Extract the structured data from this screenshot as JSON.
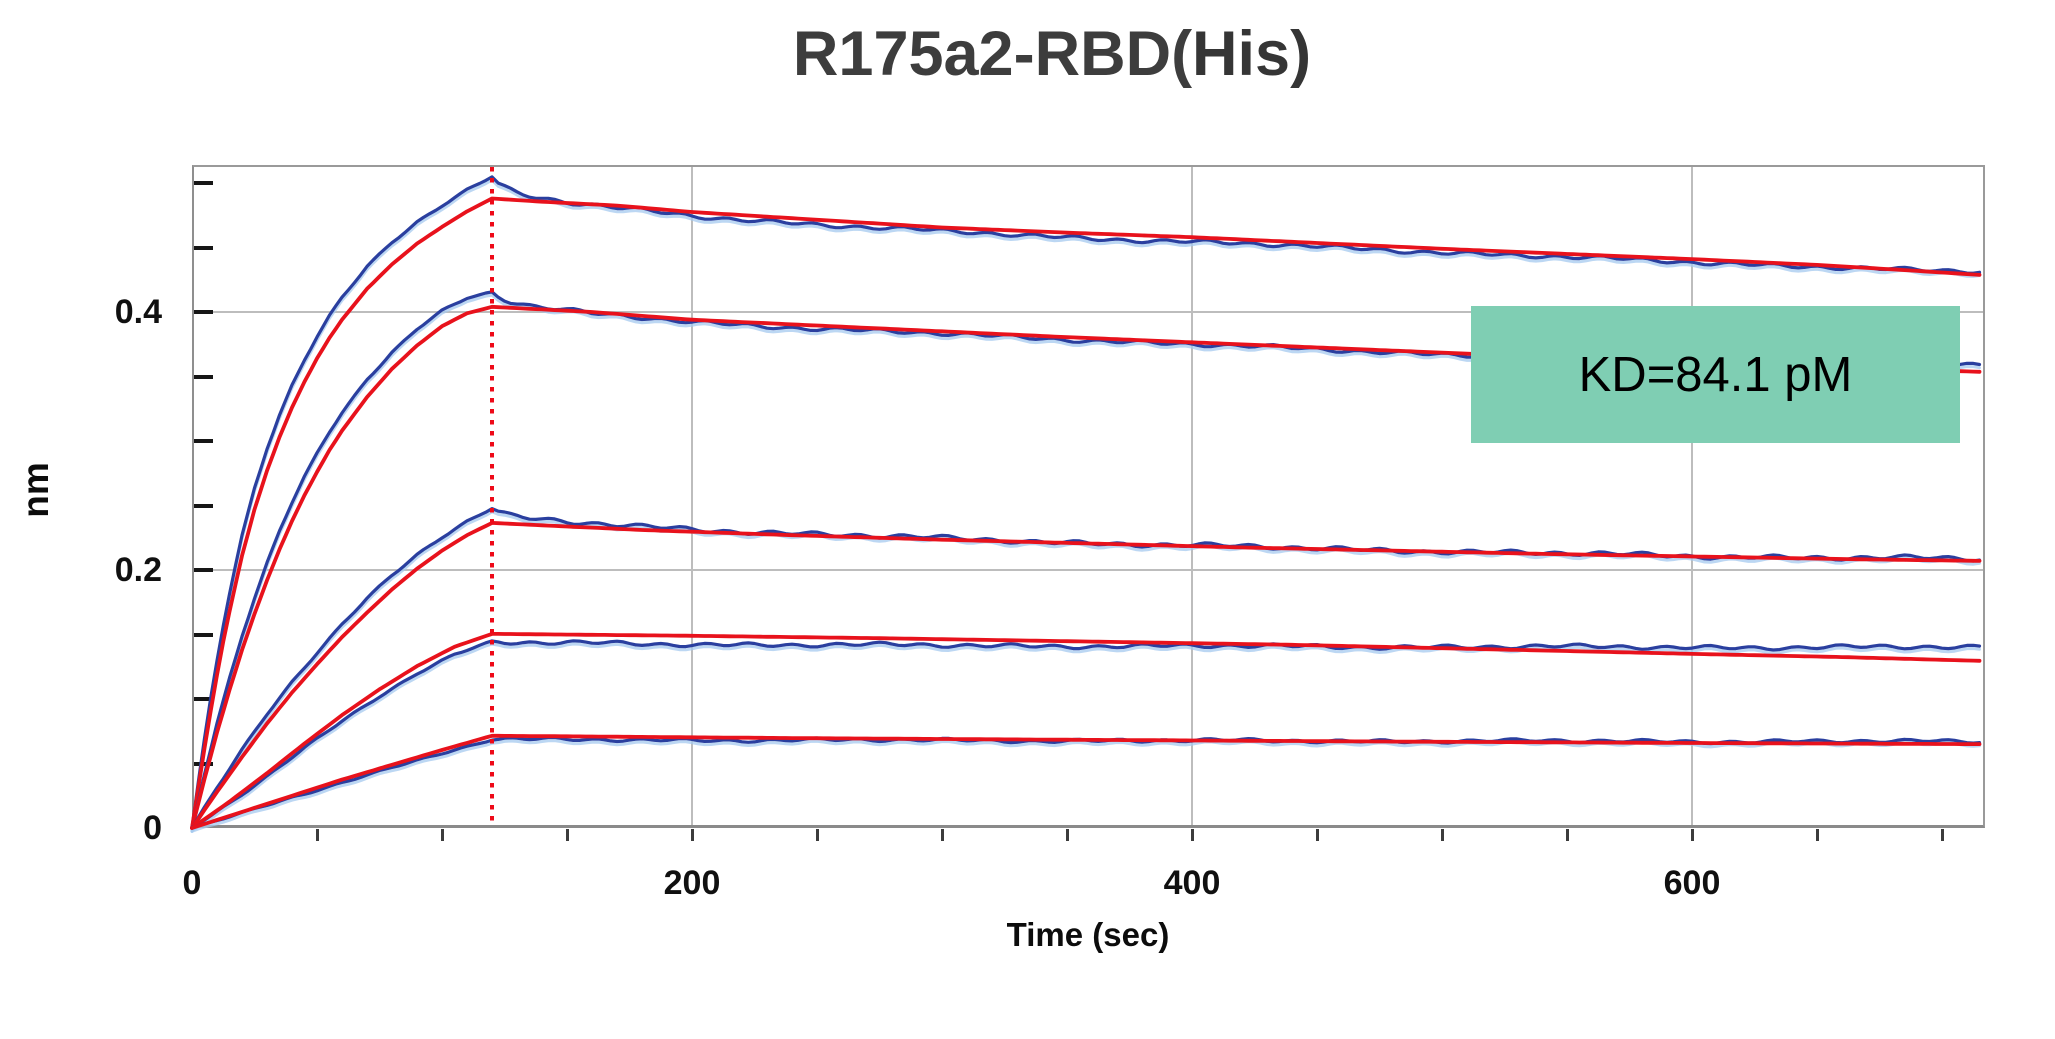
{
  "page": {
    "background": "#ffffff"
  },
  "title": {
    "part1": "R175a2-RBD(",
    "part2": "His",
    "part3": ")"
  },
  "annotation": {
    "text": "KD=84.1 pM",
    "bg": "#7fceb3",
    "fg": "#000000"
  },
  "axes": {
    "x": {
      "title": "Time (sec)",
      "min": 0,
      "max": 720,
      "minor_tick_step": 50,
      "gridline_ts": [
        200,
        400,
        600
      ],
      "tick_labels": [
        {
          "t": 0,
          "text": "0"
        },
        {
          "t": 200,
          "text": "200"
        },
        {
          "t": 400,
          "text": "400"
        },
        {
          "t": 600,
          "text": "600"
        }
      ]
    },
    "y": {
      "title": "nm",
      "min": 0,
      "max": 0.514,
      "minor_tick_step": 0.05,
      "gridline_vs": [
        0.2,
        0.4
      ],
      "tick_labels": [
        {
          "v": 0,
          "text": "0"
        },
        {
          "v": 0.2,
          "text": "0.2"
        },
        {
          "v": 0.4,
          "text": "0.4"
        }
      ]
    }
  },
  "chart_data": {
    "type": "line",
    "title": "R175a2-RBD(His)",
    "xlabel": "Time (sec)",
    "ylabel": "nm",
    "xlim": [
      0,
      720
    ],
    "ylim": [
      0,
      0.514
    ],
    "grid": true,
    "legend": "none",
    "association_end_sec": 120,
    "kd_annotation": "KD=84.1 pM",
    "marker_line": {
      "t": 120,
      "color": "#ee0a18",
      "style": "dotted"
    },
    "colors": {
      "raw": "#2a3f9f",
      "raw_halo": "#a5c9ef",
      "fit": "#e8121c",
      "grid": "#bdbdbd",
      "frame": "#9a9a9a"
    },
    "series": [
      {
        "name": "curve-1-raw",
        "role": "raw",
        "color": "#2a3f9f",
        "noise": 0.0018,
        "points": [
          [
            0,
            0
          ],
          [
            4,
            0.056
          ],
          [
            8,
            0.107
          ],
          [
            12,
            0.152
          ],
          [
            16,
            0.191
          ],
          [
            20,
            0.226
          ],
          [
            25,
            0.263
          ],
          [
            30,
            0.294
          ],
          [
            35,
            0.32
          ],
          [
            40,
            0.343
          ],
          [
            45,
            0.363
          ],
          [
            50,
            0.381
          ],
          [
            55,
            0.397
          ],
          [
            60,
            0.411
          ],
          [
            70,
            0.435
          ],
          [
            80,
            0.454
          ],
          [
            90,
            0.47
          ],
          [
            100,
            0.483
          ],
          [
            110,
            0.495
          ],
          [
            120,
            0.505
          ],
          [
            122,
            0.5
          ],
          [
            126,
            0.4955
          ],
          [
            131,
            0.4915
          ],
          [
            138,
            0.4885
          ],
          [
            150,
            0.485
          ],
          [
            170,
            0.4805
          ],
          [
            200,
            0.4745
          ],
          [
            250,
            0.468
          ],
          [
            300,
            0.4625
          ],
          [
            350,
            0.458
          ],
          [
            400,
            0.4545
          ],
          [
            450,
            0.4505
          ],
          [
            500,
            0.4465
          ],
          [
            550,
            0.4425
          ],
          [
            600,
            0.4385
          ],
          [
            650,
            0.4355
          ],
          [
            685,
            0.4325
          ],
          [
            717,
            0.431
          ]
        ]
      },
      {
        "name": "curve-1-fit",
        "role": "fit",
        "color": "#e8121c",
        "noise": 0,
        "points": [
          [
            0,
            0
          ],
          [
            4,
            0.05
          ],
          [
            8,
            0.097
          ],
          [
            12,
            0.14
          ],
          [
            16,
            0.177
          ],
          [
            20,
            0.211
          ],
          [
            25,
            0.247
          ],
          [
            30,
            0.277
          ],
          [
            35,
            0.303
          ],
          [
            40,
            0.326
          ],
          [
            45,
            0.346
          ],
          [
            50,
            0.364
          ],
          [
            55,
            0.38
          ],
          [
            60,
            0.394
          ],
          [
            70,
            0.418
          ],
          [
            80,
            0.437
          ],
          [
            90,
            0.453
          ],
          [
            100,
            0.466
          ],
          [
            110,
            0.478
          ],
          [
            120,
            0.488
          ],
          [
            140,
            0.4855
          ],
          [
            170,
            0.4825
          ],
          [
            200,
            0.4775
          ],
          [
            250,
            0.4715
          ],
          [
            300,
            0.4655
          ],
          [
            350,
            0.4615
          ],
          [
            400,
            0.458
          ],
          [
            450,
            0.4535
          ],
          [
            500,
            0.449
          ],
          [
            550,
            0.445
          ],
          [
            600,
            0.441
          ],
          [
            650,
            0.4365
          ],
          [
            685,
            0.4325
          ],
          [
            717,
            0.4285
          ]
        ]
      },
      {
        "name": "curve-2-raw",
        "role": "raw",
        "color": "#2a3f9f",
        "noise": 0.0018,
        "points": [
          [
            0,
            0
          ],
          [
            5,
            0.042
          ],
          [
            10,
            0.081
          ],
          [
            15,
            0.116
          ],
          [
            20,
            0.149
          ],
          [
            25,
            0.178
          ],
          [
            30,
            0.205
          ],
          [
            35,
            0.23
          ],
          [
            40,
            0.252
          ],
          [
            45,
            0.272
          ],
          [
            50,
            0.29
          ],
          [
            55,
            0.307
          ],
          [
            60,
            0.322
          ],
          [
            70,
            0.348
          ],
          [
            80,
            0.369
          ],
          [
            90,
            0.387
          ],
          [
            100,
            0.401
          ],
          [
            110,
            0.411
          ],
          [
            120,
            0.4155
          ],
          [
            123,
            0.4115
          ],
          [
            128,
            0.408
          ],
          [
            136,
            0.4045
          ],
          [
            146,
            0.402
          ],
          [
            160,
            0.3985
          ],
          [
            200,
            0.3925
          ],
          [
            250,
            0.3872
          ],
          [
            300,
            0.383
          ],
          [
            350,
            0.379
          ],
          [
            400,
            0.375
          ],
          [
            450,
            0.371
          ],
          [
            500,
            0.3675
          ],
          [
            550,
            0.3645
          ],
          [
            600,
            0.3618
          ],
          [
            660,
            0.3595
          ],
          [
            690,
            0.3585
          ],
          [
            717,
            0.358
          ]
        ]
      },
      {
        "name": "curve-2-fit",
        "role": "fit",
        "color": "#e8121c",
        "noise": 0,
        "points": [
          [
            0,
            0
          ],
          [
            5,
            0.038
          ],
          [
            10,
            0.074
          ],
          [
            15,
            0.107
          ],
          [
            20,
            0.138
          ],
          [
            25,
            0.166
          ],
          [
            30,
            0.192
          ],
          [
            35,
            0.216
          ],
          [
            40,
            0.238
          ],
          [
            45,
            0.258
          ],
          [
            50,
            0.276
          ],
          [
            55,
            0.293
          ],
          [
            60,
            0.308
          ],
          [
            70,
            0.334
          ],
          [
            80,
            0.356
          ],
          [
            90,
            0.374
          ],
          [
            100,
            0.389
          ],
          [
            110,
            0.399
          ],
          [
            120,
            0.404
          ],
          [
            160,
            0.4
          ],
          [
            200,
            0.394
          ],
          [
            250,
            0.3895
          ],
          [
            300,
            0.385
          ],
          [
            350,
            0.3805
          ],
          [
            400,
            0.3765
          ],
          [
            450,
            0.3725
          ],
          [
            500,
            0.3685
          ],
          [
            550,
            0.3645
          ],
          [
            600,
            0.361
          ],
          [
            660,
            0.357
          ],
          [
            717,
            0.3535
          ]
        ]
      },
      {
        "name": "curve-3-raw",
        "role": "raw",
        "color": "#2a3f9f",
        "noise": 0.002,
        "points": [
          [
            0,
            0
          ],
          [
            10,
            0.031
          ],
          [
            20,
            0.06
          ],
          [
            30,
            0.088
          ],
          [
            40,
            0.113
          ],
          [
            50,
            0.136
          ],
          [
            60,
            0.158
          ],
          [
            70,
            0.178
          ],
          [
            80,
            0.196
          ],
          [
            90,
            0.212
          ],
          [
            100,
            0.226
          ],
          [
            110,
            0.238
          ],
          [
            120,
            0.248
          ],
          [
            123,
            0.2445
          ],
          [
            128,
            0.2415
          ],
          [
            135,
            0.2395
          ],
          [
            150,
            0.237
          ],
          [
            180,
            0.2335
          ],
          [
            240,
            0.2285
          ],
          [
            300,
            0.2245
          ],
          [
            360,
            0.221
          ],
          [
            420,
            0.218
          ],
          [
            480,
            0.2155
          ],
          [
            540,
            0.213
          ],
          [
            600,
            0.211
          ],
          [
            660,
            0.2095
          ],
          [
            717,
            0.2085
          ]
        ]
      },
      {
        "name": "curve-3-fit",
        "role": "fit",
        "color": "#e8121c",
        "noise": 0,
        "points": [
          [
            0,
            0
          ],
          [
            10,
            0.028
          ],
          [
            20,
            0.055
          ],
          [
            30,
            0.081
          ],
          [
            40,
            0.105
          ],
          [
            50,
            0.127
          ],
          [
            60,
            0.148
          ],
          [
            70,
            0.167
          ],
          [
            80,
            0.185
          ],
          [
            90,
            0.201
          ],
          [
            100,
            0.215
          ],
          [
            110,
            0.227
          ],
          [
            120,
            0.2365
          ],
          [
            180,
            0.231
          ],
          [
            240,
            0.227
          ],
          [
            300,
            0.2235
          ],
          [
            360,
            0.2205
          ],
          [
            420,
            0.2175
          ],
          [
            480,
            0.215
          ],
          [
            540,
            0.2125
          ],
          [
            600,
            0.2105
          ],
          [
            660,
            0.2085
          ],
          [
            717,
            0.207
          ]
        ]
      },
      {
        "name": "curve-4-raw",
        "role": "raw",
        "color": "#2a3f9f",
        "noise": 0.0018,
        "points": [
          [
            0,
            0
          ],
          [
            15,
            0.019
          ],
          [
            30,
            0.04
          ],
          [
            45,
            0.062
          ],
          [
            60,
            0.083
          ],
          [
            75,
            0.1025
          ],
          [
            90,
            0.12
          ],
          [
            105,
            0.1345
          ],
          [
            120,
            0.1445
          ],
          [
            130,
            0.1435
          ],
          [
            200,
            0.1425
          ],
          [
            300,
            0.1415
          ],
          [
            400,
            0.141
          ],
          [
            500,
            0.1405
          ],
          [
            600,
            0.1402
          ],
          [
            717,
            0.14
          ]
        ]
      },
      {
        "name": "curve-4-fit",
        "role": "fit",
        "color": "#e8121c",
        "noise": 0,
        "points": [
          [
            0,
            0
          ],
          [
            15,
            0.0205
          ],
          [
            30,
            0.0425
          ],
          [
            45,
            0.0655
          ],
          [
            60,
            0.0875
          ],
          [
            75,
            0.1075
          ],
          [
            90,
            0.1255
          ],
          [
            105,
            0.1405
          ],
          [
            120,
            0.1505
          ],
          [
            200,
            0.149
          ],
          [
            280,
            0.147
          ],
          [
            360,
            0.1445
          ],
          [
            440,
            0.142
          ],
          [
            520,
            0.1385
          ],
          [
            600,
            0.135
          ],
          [
            660,
            0.1325
          ],
          [
            717,
            0.1295
          ]
        ]
      },
      {
        "name": "curve-5-raw",
        "role": "raw",
        "color": "#2a3f9f",
        "noise": 0.0015,
        "points": [
          [
            0,
            0
          ],
          [
            20,
            0.0115
          ],
          [
            40,
            0.0235
          ],
          [
            60,
            0.0355
          ],
          [
            80,
            0.047
          ],
          [
            100,
            0.058
          ],
          [
            120,
            0.0685
          ],
          [
            130,
            0.0685
          ],
          [
            240,
            0.0682
          ],
          [
            360,
            0.0678
          ],
          [
            480,
            0.0675
          ],
          [
            600,
            0.0672
          ],
          [
            717,
            0.067
          ]
        ]
      },
      {
        "name": "curve-5-fit",
        "role": "fit",
        "color": "#e8121c",
        "noise": 0,
        "points": [
          [
            0,
            0
          ],
          [
            20,
            0.0125
          ],
          [
            40,
            0.025
          ],
          [
            60,
            0.0375
          ],
          [
            80,
            0.049
          ],
          [
            100,
            0.0605
          ],
          [
            120,
            0.0715
          ],
          [
            240,
            0.0697
          ],
          [
            360,
            0.0683
          ],
          [
            480,
            0.067
          ],
          [
            600,
            0.0659
          ],
          [
            717,
            0.065
          ]
        ]
      }
    ]
  }
}
